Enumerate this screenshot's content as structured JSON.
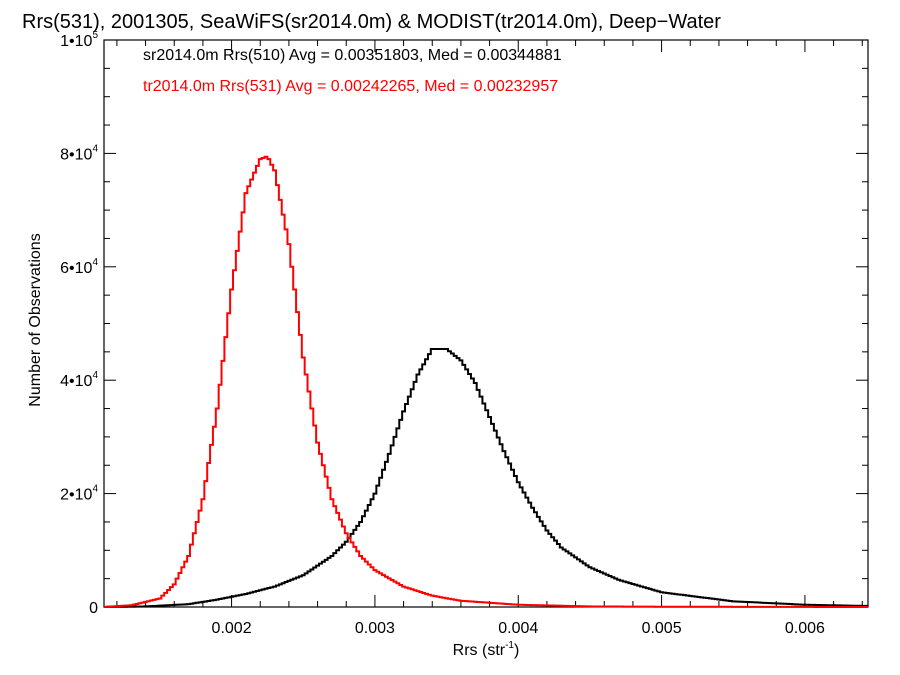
{
  "chart_data": {
    "type": "line",
    "title": "Rrs(531), 2001305, SeaWiFS(sr2014.0m) & MODIST(tr2014.0m), Deep−Water",
    "xlabel": "Rrs (str",
    "xlabel_sup": "-1",
    "xlabel_close": ")",
    "ylabel": "Number of Observations",
    "xlim": [
      0.00111,
      0.00644
    ],
    "ylim": [
      0,
      100000
    ],
    "x_ticks": [
      0.002,
      0.003,
      0.004,
      0.005,
      0.006
    ],
    "x_tick_labels": [
      "0.002",
      "0.003",
      "0.004",
      "0.005",
      "0.006"
    ],
    "y_ticks": [
      0,
      20000,
      40000,
      60000,
      80000,
      100000
    ],
    "y_tick_labels": [
      {
        "base": "0",
        "exp": ""
      },
      {
        "base": "2•10",
        "exp": "4"
      },
      {
        "base": "4•10",
        "exp": "4"
      },
      {
        "base": "6•10",
        "exp": "4"
      },
      {
        "base": "8•10",
        "exp": "4"
      },
      {
        "base": "1•10",
        "exp": "5"
      }
    ],
    "grid": false,
    "legend_position": "top-left",
    "series": [
      {
        "name": "sr2014.0m Rrs(510) Avg = 0.00351803, Med = 0.00344881",
        "color": "#000000",
        "style": "step",
        "x": [
          0.0011,
          0.0014,
          0.0017,
          0.0019,
          0.0021,
          0.0023,
          0.0025,
          0.0027,
          0.0028,
          0.0029,
          0.003,
          0.0031,
          0.0032,
          0.0033,
          0.0034,
          0.0035,
          0.0036,
          0.0037,
          0.0038,
          0.0039,
          0.004,
          0.0041,
          0.0042,
          0.0043,
          0.0045,
          0.0047,
          0.005,
          0.0055,
          0.006,
          0.0064
        ],
        "y": [
          0,
          100,
          500,
          1300,
          2300,
          3600,
          5600,
          9000,
          11500,
          15000,
          20000,
          27000,
          34500,
          41000,
          45500,
          45500,
          43500,
          39500,
          33500,
          27500,
          22000,
          17500,
          13500,
          10500,
          7000,
          4800,
          2600,
          1000,
          400,
          200
        ]
      },
      {
        "name": "tr2014.0m Rrs(531) Avg = 0.00242265, Med = 0.00232957",
        "color": "#ff0000",
        "style": "step",
        "x": [
          0.0011,
          0.0013,
          0.0015,
          0.0016,
          0.0017,
          0.0018,
          0.0019,
          0.002,
          0.0021,
          0.0022,
          0.00225,
          0.0023,
          0.0024,
          0.0025,
          0.0026,
          0.0027,
          0.0028,
          0.0029,
          0.003,
          0.0032,
          0.0034,
          0.0036,
          0.004,
          0.0045,
          0.005,
          0.0064
        ],
        "y": [
          0,
          300,
          1500,
          4000,
          9000,
          19000,
          35000,
          56000,
          73000,
          79000,
          79500,
          77000,
          64000,
          44000,
          29000,
          19000,
          13000,
          9000,
          6500,
          3600,
          2000,
          1100,
          400,
          100,
          50,
          0
        ]
      }
    ]
  }
}
